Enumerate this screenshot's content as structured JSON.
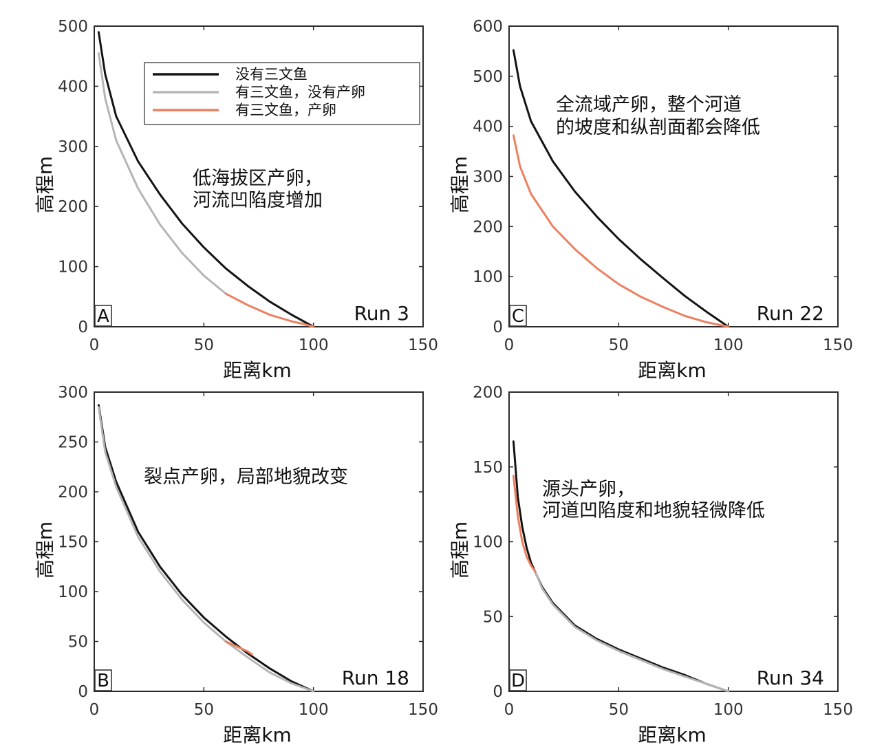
{
  "figure": {
    "colors": {
      "no_salmon": "#141414",
      "salmon_no_spawn": "#b5b5b5",
      "salmon_spawn": "#ec8060"
    },
    "legend": [
      {
        "key": "no_salmon",
        "label": "没有三文鱼"
      },
      {
        "key": "salmon_no_spawn",
        "label": "有三文鱼，没有产卵"
      },
      {
        "key": "salmon_spawn",
        "label": "有三文鱼，产卵"
      }
    ]
  },
  "chart_data": [
    {
      "type": "line",
      "panel": "A",
      "run": "Run 3",
      "xlabel": "距离km",
      "ylabel": "高程m",
      "xlim": [
        0,
        150
      ],
      "ylim": [
        0,
        500
      ],
      "xticks": [
        "0",
        "50",
        "100",
        "150"
      ],
      "yticks": [
        "0",
        "100",
        "200",
        "300",
        "400",
        "500"
      ],
      "annotation": [
        "低海拔区产卵，",
        "河流凹陷度增加"
      ],
      "legend": "top-right",
      "series": [
        {
          "key": "no_salmon",
          "x": [
            2,
            5,
            10,
            20,
            30,
            40,
            50,
            60,
            70,
            80,
            90,
            100
          ],
          "y": [
            490,
            420,
            350,
            275,
            220,
            172,
            132,
            97,
            68,
            42,
            20,
            0
          ]
        },
        {
          "key": "salmon_no_spawn",
          "x": [
            2,
            5,
            10,
            20,
            30,
            40,
            50,
            60
          ],
          "y": [
            455,
            380,
            310,
            230,
            170,
            123,
            85,
            55
          ]
        },
        {
          "key": "salmon_spawn",
          "x": [
            60,
            70,
            80,
            90,
            95,
            100
          ],
          "y": [
            55,
            36,
            20,
            9,
            5,
            0
          ]
        }
      ]
    },
    {
      "type": "line",
      "panel": "C",
      "run": "Run 22",
      "xlabel": "距离km",
      "ylabel": "高程m",
      "xlim": [
        0,
        150
      ],
      "ylim": [
        0,
        600
      ],
      "xticks": [
        "0",
        "50",
        "100",
        "150"
      ],
      "yticks": [
        "0",
        "100",
        "200",
        "300",
        "400",
        "500",
        "600"
      ],
      "annotation": [
        "全流域产卵，整个河道",
        "的坡度和纵剖面都会降低"
      ],
      "series": [
        {
          "key": "no_salmon",
          "x": [
            2,
            5,
            10,
            20,
            30,
            40,
            50,
            60,
            70,
            80,
            90,
            100
          ],
          "y": [
            552,
            480,
            410,
            330,
            270,
            220,
            175,
            135,
            98,
            62,
            30,
            0
          ]
        },
        {
          "key": "salmon_spawn",
          "x": [
            2,
            5,
            10,
            20,
            30,
            40,
            50,
            60,
            70,
            80,
            90,
            100
          ],
          "y": [
            382,
            320,
            265,
            200,
            155,
            117,
            85,
            60,
            40,
            22,
            9,
            0
          ]
        }
      ]
    },
    {
      "type": "line",
      "panel": "B",
      "run": "Run 18",
      "xlabel": "距离km",
      "ylabel": "高程m",
      "xlim": [
        0,
        150
      ],
      "ylim": [
        0,
        300
      ],
      "xticks": [
        "0",
        "50",
        "100",
        "150"
      ],
      "yticks": [
        "0",
        "50",
        "100",
        "150",
        "200",
        "250",
        "300"
      ],
      "annotation": [
        "裂点产卵，局部地貌改变"
      ],
      "series": [
        {
          "key": "no_salmon",
          "x": [
            2,
            5,
            10,
            20,
            30,
            40,
            50,
            60,
            70,
            80,
            90,
            100
          ],
          "y": [
            287,
            245,
            210,
            160,
            125,
            97,
            74,
            55,
            38,
            23,
            10,
            0
          ]
        },
        {
          "key": "salmon_no_spawn",
          "x": [
            2,
            5,
            10,
            20,
            30,
            40,
            50,
            60,
            70,
            80,
            90,
            100
          ],
          "y": [
            285,
            240,
            205,
            155,
            120,
            92,
            69,
            50,
            34,
            19,
            8,
            0
          ]
        },
        {
          "key": "salmon_spawn",
          "x": [
            60,
            65,
            70,
            72
          ],
          "y": [
            50,
            45,
            40,
            37
          ]
        }
      ]
    },
    {
      "type": "line",
      "panel": "D",
      "run": "Run 34",
      "xlabel": "距离km",
      "ylabel": "高程m",
      "xlim": [
        0,
        150
      ],
      "ylim": [
        0,
        200
      ],
      "xticks": [
        "0",
        "50",
        "100",
        "150"
      ],
      "yticks": [
        "0",
        "50",
        "100",
        "150",
        "200"
      ],
      "annotation": [
        "源头产卵，",
        "河道凹陷度和地貌轻微降低"
      ],
      "series": [
        {
          "key": "no_salmon",
          "x": [
            2,
            4,
            6,
            8,
            10,
            15,
            20,
            30,
            40,
            50,
            60,
            70,
            80,
            90,
            100
          ],
          "y": [
            167,
            130,
            110,
            96,
            86,
            70,
            59,
            44,
            35,
            28,
            22,
            16,
            11,
            5,
            0
          ]
        },
        {
          "key": "salmon_no_spawn",
          "x": [
            12,
            15,
            20,
            30,
            40,
            50,
            60,
            70,
            80,
            90,
            100
          ],
          "y": [
            80,
            69,
            58,
            43,
            34,
            27,
            21,
            15,
            10,
            5,
            0
          ]
        },
        {
          "key": "salmon_spawn",
          "x": [
            2,
            4,
            6,
            8,
            10,
            12
          ],
          "y": [
            144,
            117,
            100,
            90,
            84,
            80
          ]
        }
      ]
    }
  ]
}
